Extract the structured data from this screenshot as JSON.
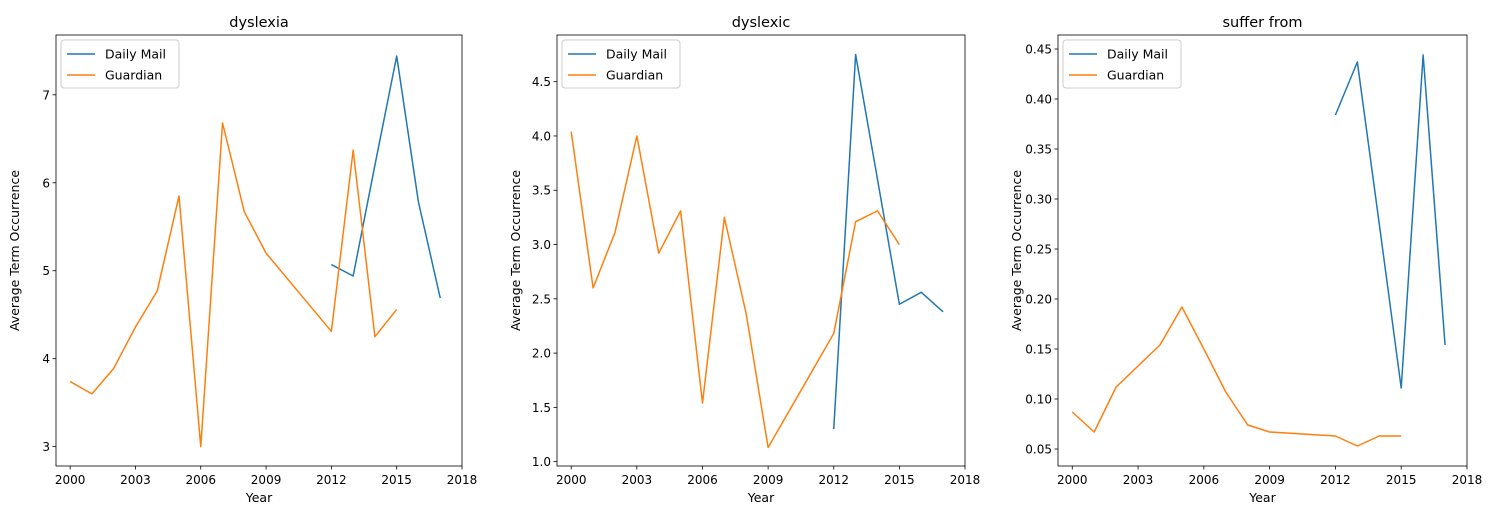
{
  "chart_data": [
    {
      "type": "line",
      "title": "dyslexia",
      "xlabel": "Year",
      "ylabel": "Average Term Occurrence",
      "xlim": [
        1999.35,
        2018.0
      ],
      "ylim": [
        2.78,
        7.68
      ],
      "xticks": [
        2000,
        2003,
        2006,
        2009,
        2012,
        2015,
        2018
      ],
      "yticks": [
        3,
        4,
        5,
        6,
        7
      ],
      "ytick_decimals": 0,
      "legend": "upper-left",
      "grid": false,
      "series": [
        {
          "name": "Daily Mail",
          "color": "#1f77b4",
          "x": [
            2012,
            2013,
            2014,
            2015,
            2016,
            2017
          ],
          "y": [
            5.07,
            4.94,
            6.2,
            7.44,
            5.78,
            4.69
          ]
        },
        {
          "name": "Guardian",
          "color": "#ff7f0e",
          "x": [
            2000,
            2001,
            2002,
            2003,
            2004,
            2005,
            2006,
            2007,
            2008,
            2009,
            2012,
            2013,
            2014,
            2015
          ],
          "y": [
            3.74,
            3.6,
            3.89,
            4.36,
            4.77,
            5.85,
            3.0,
            6.68,
            5.67,
            5.2,
            4.31,
            6.37,
            4.25,
            4.56
          ]
        }
      ]
    },
    {
      "type": "line",
      "title": "dyslexic",
      "xlabel": "Year",
      "ylabel": "Average Term Occurrence",
      "xlim": [
        1999.35,
        2018.0
      ],
      "ylim": [
        0.96,
        4.93
      ],
      "xticks": [
        2000,
        2003,
        2006,
        2009,
        2012,
        2015,
        2018
      ],
      "yticks": [
        1.0,
        1.5,
        2.0,
        2.5,
        3.0,
        3.5,
        4.0,
        4.5
      ],
      "ytick_decimals": 1,
      "legend": "upper-left",
      "grid": false,
      "series": [
        {
          "name": "Daily Mail",
          "color": "#1f77b4",
          "x": [
            2012,
            2013,
            2014,
            2015,
            2016,
            2017
          ],
          "y": [
            1.3,
            4.75,
            3.6,
            2.45,
            2.56,
            2.38
          ]
        },
        {
          "name": "Guardian",
          "color": "#ff7f0e",
          "x": [
            2000,
            2001,
            2002,
            2003,
            2004,
            2005,
            2006,
            2007,
            2008,
            2009,
            2012,
            2013,
            2014,
            2015
          ],
          "y": [
            4.04,
            2.6,
            3.11,
            4.0,
            2.92,
            3.31,
            1.54,
            3.25,
            2.36,
            1.13,
            2.18,
            3.21,
            3.31,
            3.0
          ]
        }
      ]
    },
    {
      "type": "line",
      "title": "suffer from",
      "xlabel": "Year",
      "ylabel": "Average Term Occurrence",
      "xlim": [
        1999.35,
        2018.0
      ],
      "ylim": [
        0.033,
        0.464
      ],
      "xticks": [
        2000,
        2003,
        2006,
        2009,
        2012,
        2015,
        2018
      ],
      "yticks": [
        0.05,
        0.1,
        0.15,
        0.2,
        0.25,
        0.3,
        0.35,
        0.4,
        0.45
      ],
      "ytick_decimals": 2,
      "legend": "upper-left",
      "grid": false,
      "series": [
        {
          "name": "Daily Mail",
          "color": "#1f77b4",
          "x": [
            2012,
            2013,
            2014,
            2015,
            2016,
            2017
          ],
          "y": [
            0.384,
            0.437,
            0.275,
            0.111,
            0.444,
            0.154
          ]
        },
        {
          "name": "Guardian",
          "color": "#ff7f0e",
          "x": [
            2000,
            2001,
            2002,
            2003,
            2004,
            2005,
            2006,
            2007,
            2008,
            2009,
            2012,
            2013,
            2014,
            2015
          ],
          "y": [
            0.087,
            0.067,
            0.112,
            0.133,
            0.154,
            0.192,
            0.15,
            0.107,
            0.074,
            0.067,
            0.063,
            0.053,
            0.063,
            0.063
          ]
        }
      ]
    }
  ]
}
